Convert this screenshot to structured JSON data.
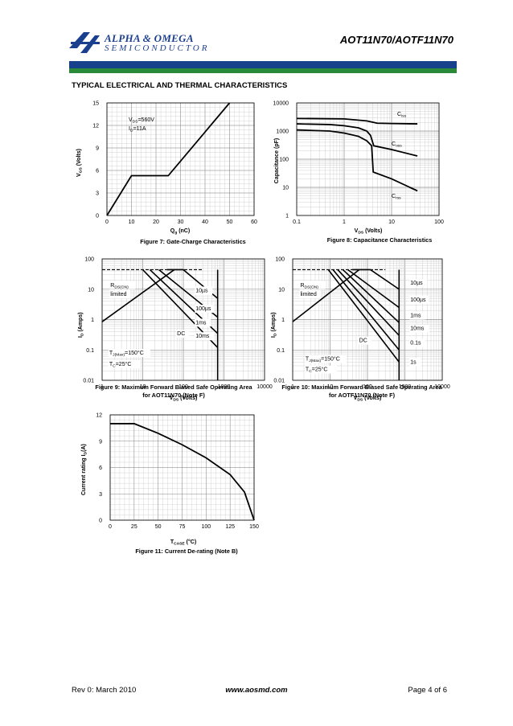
{
  "header": {
    "logo_line1": "ALPHA & OMEGA",
    "logo_line2": "SEMICONDUCTOR",
    "part_number": "AOT11N70/AOTF11N70",
    "brand_blue": "#17418b",
    "brand_green": "#2a8a3a"
  },
  "section_title": "TYPICAL ELECTRICAL AND THERMAL CHARACTERISTICS",
  "footer": {
    "revision": "Rev 0: March 2010",
    "website": "www.aosmd.com",
    "page": "Page 4 of 6"
  },
  "chart_data": [
    {
      "id": "fig7",
      "type": "line",
      "caption": "Figure 7: Gate-Charge Characteristics",
      "xlabel": "Qg (nC)",
      "ylabel": "VGS (Volts)",
      "xlim": [
        0,
        60
      ],
      "ylim": [
        0,
        15
      ],
      "xticks": [
        "0",
        "10",
        "20",
        "30",
        "40",
        "50",
        "60"
      ],
      "yticks": [
        "0",
        "3",
        "6",
        "9",
        "12",
        "15"
      ],
      "annotations": [
        "VDS=560V",
        "ID=11A"
      ],
      "series": [
        {
          "x": [
            0,
            10,
            25,
            50
          ],
          "y": [
            0,
            5.3,
            5.3,
            15
          ]
        }
      ]
    },
    {
      "id": "fig8",
      "type": "line",
      "caption": "Figure 8: Capacitance Characteristics",
      "xlabel": "VDS (Volts)",
      "ylabel": "Capacitance (pF)",
      "xscale": "log",
      "yscale": "log",
      "xlim": [
        0.1,
        100
      ],
      "ylim": [
        1,
        10000
      ],
      "xticks": [
        "0.1",
        "1",
        "10",
        "100"
      ],
      "yticks": [
        "1",
        "10",
        "100",
        "1000",
        "10000"
      ],
      "series": [
        {
          "name": "Ciss",
          "x": [
            0.1,
            1,
            3,
            5,
            10,
            35
          ],
          "y": [
            2800,
            2700,
            2300,
            1900,
            1850,
            1800
          ]
        },
        {
          "name": "Coss",
          "x": [
            0.1,
            0.5,
            1,
            2,
            3,
            3.6,
            4.2,
            10,
            35
          ],
          "y": [
            1800,
            1700,
            1550,
            1300,
            1000,
            700,
            300,
            220,
            130
          ]
        },
        {
          "name": "Crss",
          "x": [
            0.1,
            0.5,
            1,
            2,
            3,
            3.8,
            4.1,
            10,
            35
          ],
          "y": [
            1100,
            1000,
            850,
            650,
            450,
            300,
            35,
            20,
            7.5
          ]
        }
      ]
    },
    {
      "id": "fig9",
      "type": "line",
      "caption": "Figure 9: Maximum Forward Biased Safe Operating Area for AOT11N70 (Note F)",
      "xlabel": "VDS (Volts)",
      "ylabel": "ID (Amps)",
      "xscale": "log",
      "yscale": "log",
      "xlim": [
        1,
        10000
      ],
      "ylim": [
        0.01,
        100
      ],
      "xticks": [
        "1",
        "10",
        "100",
        "1000",
        "10000"
      ],
      "yticks": [
        "0.01",
        "0.1",
        "1",
        "10",
        "100"
      ],
      "annotations": [
        "RDS(ON) limited",
        "10µs",
        "100µs",
        "1ms",
        "10ms",
        "DC",
        "TJ(Max)=150°C",
        "TC=25°C"
      ]
    },
    {
      "id": "fig10",
      "type": "line",
      "caption": "Figure 10: Maximum Forward Biased Safe Operating Area for AOTF11N70 (Note F)",
      "xlabel": "VDS (Volts)",
      "ylabel": "ID (Amps)",
      "xscale": "log",
      "yscale": "log",
      "xlim": [
        1,
        10000
      ],
      "ylim": [
        0.01,
        100
      ],
      "xticks": [
        "1",
        "10",
        "100",
        "1000",
        "10000"
      ],
      "yticks": [
        "0.01",
        "0.1",
        "1",
        "10",
        "100"
      ],
      "annotations": [
        "RDS(ON) limited",
        "10µs",
        "100µs",
        "1ms",
        "10ms",
        "0.1s",
        "1s",
        "DC",
        "TJ(Max)=150°C",
        "TC=25°C"
      ]
    },
    {
      "id": "fig11",
      "type": "line",
      "caption": "Figure 11: Current De-rating (Note B)",
      "xlabel": "TCASE (°C)",
      "ylabel": "Current rating ID(A)",
      "xlim": [
        0,
        150
      ],
      "ylim": [
        0,
        12
      ],
      "xticks": [
        "0",
        "25",
        "50",
        "75",
        "100",
        "125",
        "150"
      ],
      "yticks": [
        "0",
        "3",
        "6",
        "9",
        "12"
      ],
      "series": [
        {
          "x": [
            0,
            25,
            50,
            75,
            100,
            125,
            140,
            150
          ],
          "y": [
            11,
            11,
            9.9,
            8.6,
            7.1,
            5.2,
            3.2,
            0
          ]
        }
      ]
    }
  ]
}
